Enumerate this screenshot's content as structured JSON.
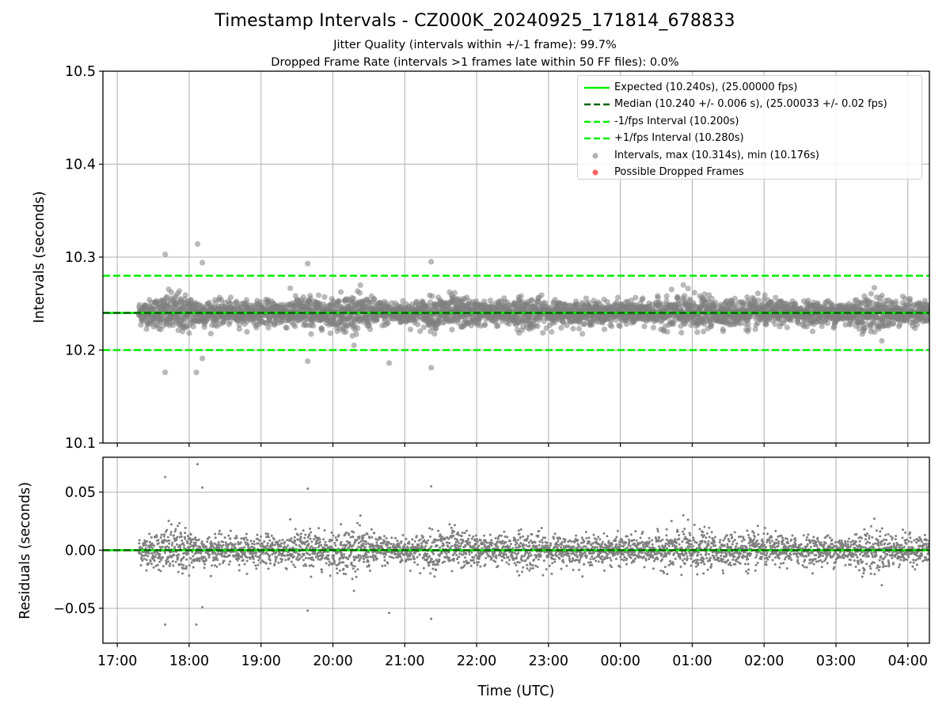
{
  "colors": {
    "expected": "#00ee00",
    "median": "#006400",
    "interval_band": "#00ee00",
    "points": "#808080",
    "dropped": "#ff0000",
    "grid": "#b0b0b0"
  },
  "chart_data": [
    {
      "type": "scatter",
      "title": "Timestamp Intervals - CZ000K_20240925_171814_678833",
      "subtitle_lines": [
        "Jitter Quality (intervals within +/-1 frame): 99.7%",
        "Dropped Frame Rate (intervals >1 frames late within 50 FF files): 0.0%"
      ],
      "xlabel": "",
      "ylabel": "Intervals (seconds)",
      "x_range": [
        "16:48",
        "04:18"
      ],
      "x_ticks": [
        "17:00",
        "18:00",
        "19:00",
        "20:00",
        "21:00",
        "22:00",
        "23:00",
        "00:00",
        "01:00",
        "02:00",
        "03:00",
        "04:00"
      ],
      "ylim": [
        10.1,
        10.5
      ],
      "y_ticks": [
        "10.1",
        "10.2",
        "10.3",
        "10.4",
        "10.5"
      ],
      "grid": true,
      "legend_position": "top-right",
      "legend": [
        {
          "label": "Expected (10.240s), (25.00000 fps)",
          "style": "solid-line"
        },
        {
          "label": "Median (10.240 +/- 0.006 s), (25.00033 +/- 0.02 fps)",
          "style": "dashed-line-dark"
        },
        {
          "label": "-1/fps Interval (10.200s)",
          "style": "dashed-line"
        },
        {
          "label": "+1/fps Interval (10.280s)",
          "style": "dashed-line"
        },
        {
          "label": "Intervals, max (10.314s), min (10.176s)",
          "style": "grey-dot"
        },
        {
          "label": "Possible Dropped Frames",
          "style": "red-dot"
        }
      ],
      "reference_lines": {
        "expected": 10.24,
        "median": 10.24,
        "lower_interval": 10.2,
        "upper_interval": 10.28
      },
      "series": [
        {
          "name": "Intervals, max (10.314s), min (10.176s)",
          "points_in_order": 3840,
          "time_start": "17:18",
          "time_end": "04:18",
          "max": 10.314,
          "min": 10.176,
          "center": 10.24,
          "typical_spread": 0.006,
          "outliers": [
            {
              "time": "17:40",
              "value": 10.303
            },
            {
              "time": "18:07",
              "value": 10.314
            },
            {
              "time": "18:11",
              "value": 10.294
            },
            {
              "time": "19:39",
              "value": 10.293
            },
            {
              "time": "21:22",
              "value": 10.295
            },
            {
              "time": "17:40",
              "value": 10.176
            },
            {
              "time": "18:06",
              "value": 10.176
            },
            {
              "time": "18:11",
              "value": 10.191
            },
            {
              "time": "19:39",
              "value": 10.188
            },
            {
              "time": "20:47",
              "value": 10.186
            },
            {
              "time": "21:22",
              "value": 10.181
            }
          ]
        },
        {
          "name": "Possible Dropped Frames",
          "points": []
        }
      ]
    },
    {
      "type": "scatter",
      "title": "",
      "xlabel": "Time (UTC)",
      "ylabel": "Residuals (seconds)",
      "x_range": [
        "16:48",
        "04:18"
      ],
      "x_ticks": [
        "17:00",
        "18:00",
        "19:00",
        "20:00",
        "21:00",
        "22:00",
        "23:00",
        "00:00",
        "01:00",
        "02:00",
        "03:00",
        "04:00"
      ],
      "ylim": [
        -0.08,
        0.08
      ],
      "y_ticks": [
        "−0.05",
        "0.00",
        "0.05"
      ],
      "y_tick_values": [
        -0.05,
        0.0,
        0.05
      ],
      "grid": true,
      "reference_lines": {
        "expected": 0.0,
        "median": 0.0
      },
      "series": [
        {
          "name": "",
          "derived_from": "residual = interval - 10.240",
          "max": 0.074,
          "min": -0.064,
          "typical_spread": 0.006
        }
      ]
    }
  ]
}
